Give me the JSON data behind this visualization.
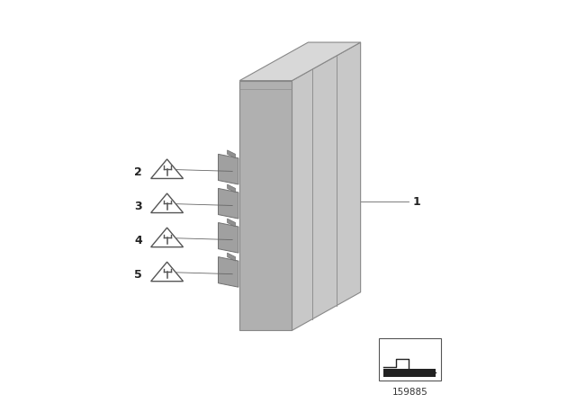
{
  "bg_color": "#ffffff",
  "part_number": "159885",
  "line_color": "#555555",
  "text_color": "#222222",
  "front_face_color": "#b0b0b0",
  "right_face_color": "#c8c8c8",
  "top_face_color": "#d8d8d8",
  "connector_color": "#a0a0a0",
  "groove_color": "#909090",
  "leader_color": "#666666",
  "icon_labels": [
    "2",
    "3",
    "4",
    "5"
  ],
  "label1": "1"
}
